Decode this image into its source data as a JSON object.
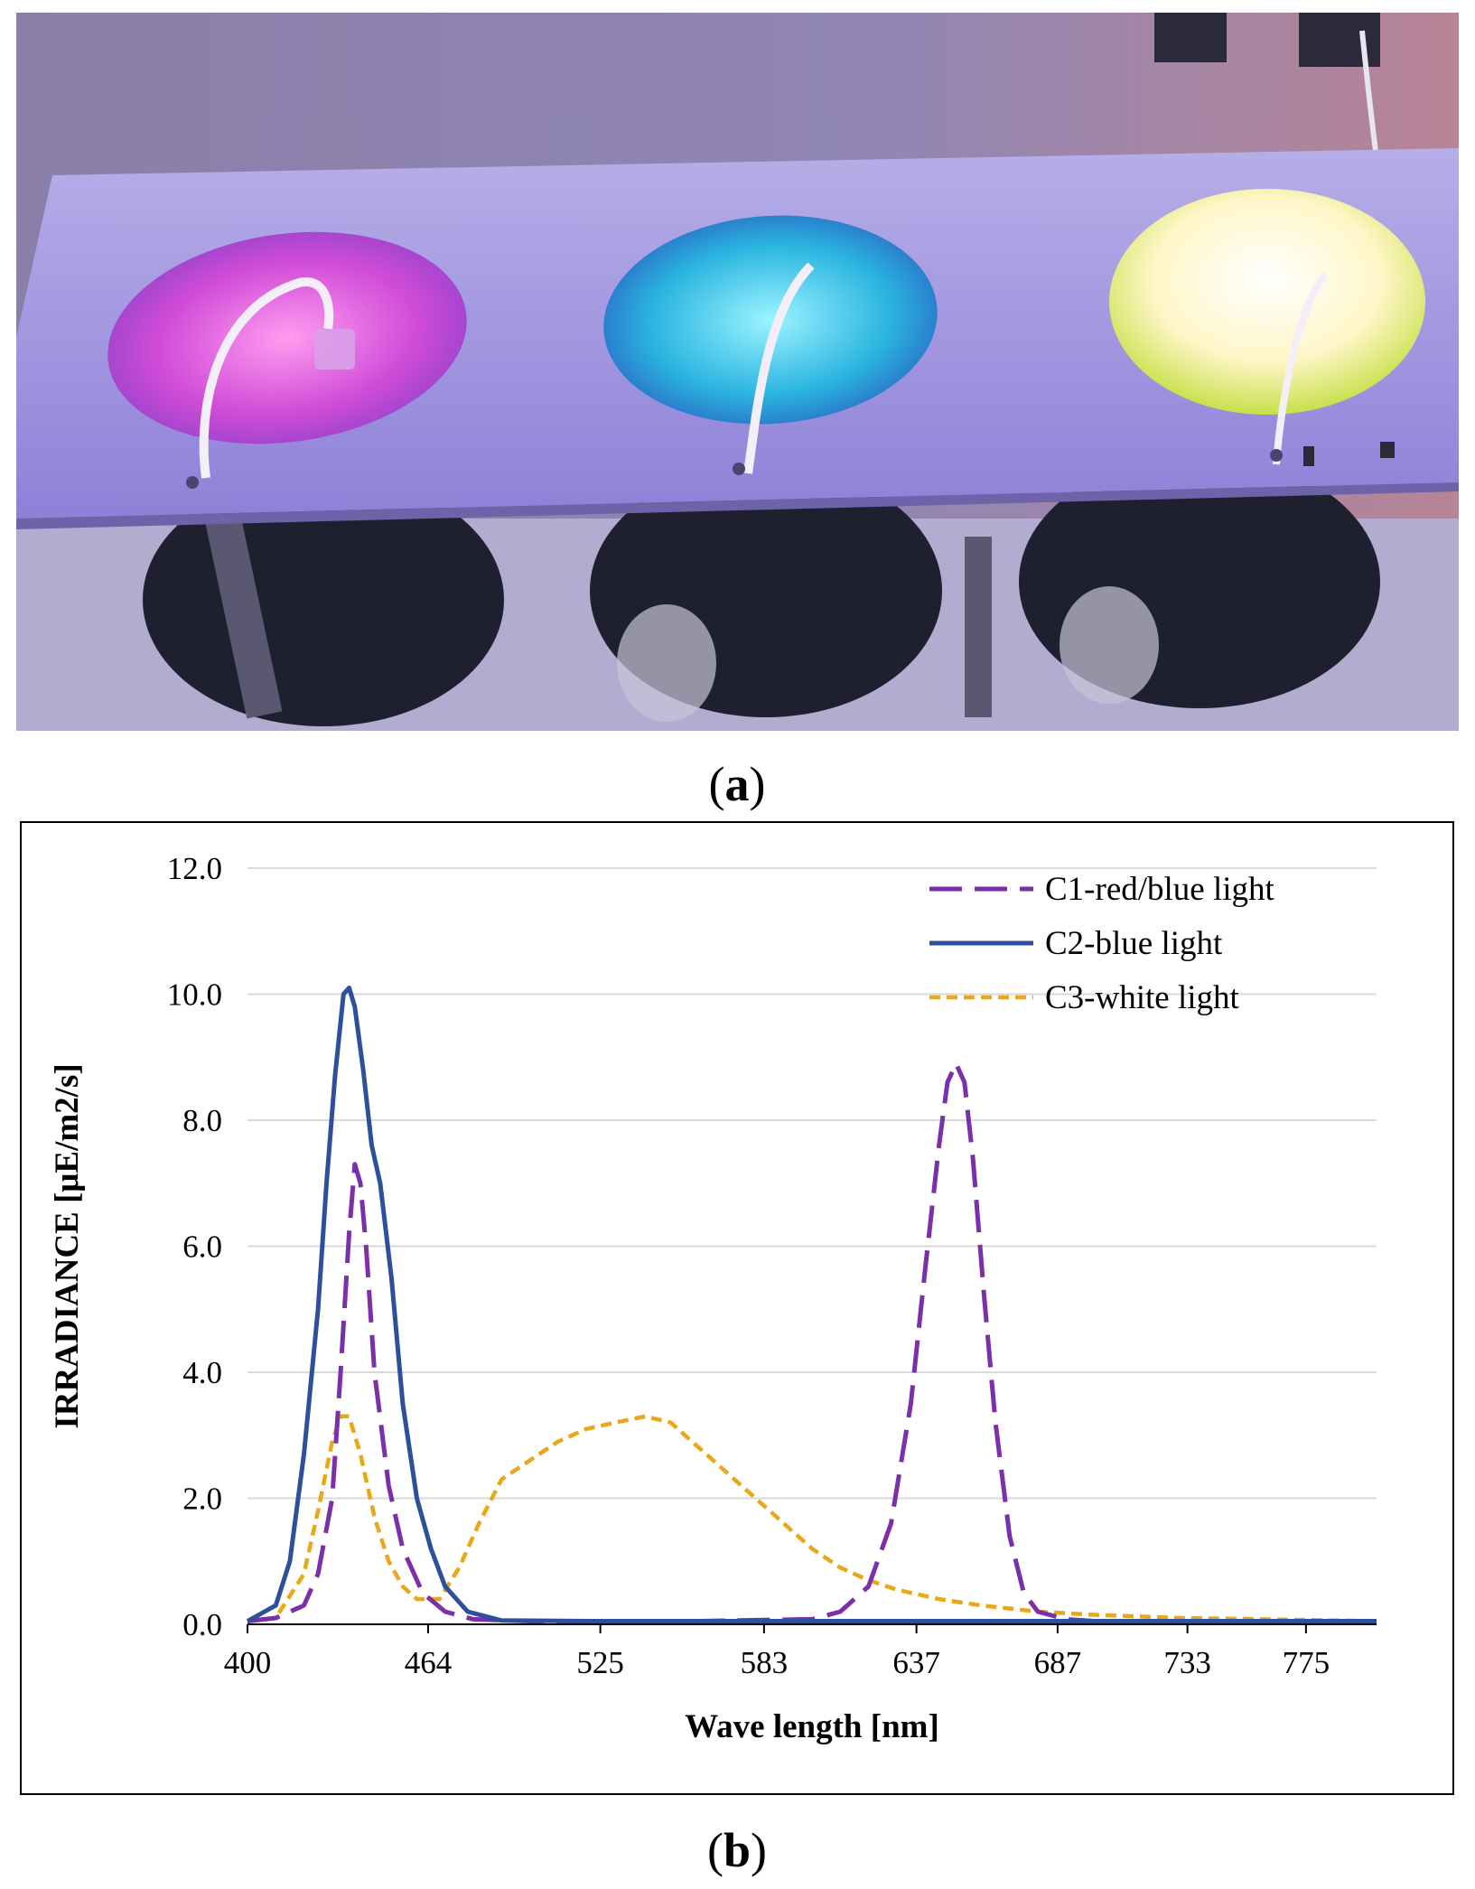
{
  "figure": {
    "label_a": {
      "open": "(",
      "letter": "a",
      "close": ")"
    },
    "label_b": {
      "open": "(",
      "letter": "b",
      "close": ")"
    },
    "photo": {
      "icon": "photo-of-three-illuminated-culture-vessels",
      "lamp_colors": [
        "#e060e8",
        "#2ec8e8",
        "#fff8c8"
      ]
    }
  },
  "chart_data": {
    "type": "line",
    "title": "",
    "xlabel": "Wave length [nm]",
    "ylabel": "IRRADIANCE [μE/m2/s]",
    "xlim": [
      400,
      800
    ],
    "ylim": [
      0,
      12
    ],
    "x_ticks": [
      400,
      464,
      525,
      583,
      637,
      687,
      733,
      775
    ],
    "y_ticks": [
      "0.0",
      "2.0",
      "4.0",
      "6.0",
      "8.0",
      "10.0",
      "12.0"
    ],
    "grid": true,
    "legend_position": "top-right",
    "series": [
      {
        "name": "C1-red/blue light",
        "color": "#7b2fa8",
        "dash": "long-dash",
        "points": [
          [
            400,
            0.05
          ],
          [
            410,
            0.1
          ],
          [
            420,
            0.3
          ],
          [
            425,
            0.8
          ],
          [
            430,
            2.0
          ],
          [
            433,
            4.0
          ],
          [
            436,
            6.2
          ],
          [
            438,
            7.3
          ],
          [
            440,
            7.0
          ],
          [
            442,
            6.0
          ],
          [
            445,
            4.0
          ],
          [
            450,
            2.2
          ],
          [
            455,
            1.2
          ],
          [
            462,
            0.5
          ],
          [
            470,
            0.2
          ],
          [
            480,
            0.08
          ],
          [
            500,
            0.05
          ],
          [
            560,
            0.05
          ],
          [
            600,
            0.08
          ],
          [
            610,
            0.2
          ],
          [
            620,
            0.6
          ],
          [
            628,
            1.6
          ],
          [
            635,
            3.5
          ],
          [
            640,
            5.6
          ],
          [
            645,
            7.6
          ],
          [
            648,
            8.6
          ],
          [
            651,
            8.9
          ],
          [
            654,
            8.6
          ],
          [
            657,
            7.4
          ],
          [
            661,
            5.2
          ],
          [
            665,
            3.2
          ],
          [
            670,
            1.4
          ],
          [
            675,
            0.5
          ],
          [
            680,
            0.2
          ],
          [
            690,
            0.08
          ],
          [
            700,
            0.05
          ],
          [
            800,
            0.05
          ]
        ]
      },
      {
        "name": "C2-blue light",
        "color": "#2e4f9c",
        "dash": "solid",
        "points": [
          [
            400,
            0.05
          ],
          [
            410,
            0.3
          ],
          [
            415,
            1.0
          ],
          [
            420,
            2.7
          ],
          [
            425,
            5.0
          ],
          [
            428,
            7.0
          ],
          [
            431,
            8.7
          ],
          [
            434,
            10.0
          ],
          [
            436,
            10.1
          ],
          [
            438,
            9.8
          ],
          [
            441,
            8.8
          ],
          [
            444,
            7.6
          ],
          [
            447,
            7.0
          ],
          [
            451,
            5.5
          ],
          [
            455,
            3.5
          ],
          [
            460,
            2.0
          ],
          [
            465,
            1.2
          ],
          [
            470,
            0.6
          ],
          [
            478,
            0.2
          ],
          [
            490,
            0.06
          ],
          [
            520,
            0.05
          ],
          [
            800,
            0.05
          ]
        ]
      },
      {
        "name": "C3-white light",
        "color": "#e8a81a",
        "dash": "short-dash",
        "points": [
          [
            400,
            0.05
          ],
          [
            410,
            0.1
          ],
          [
            420,
            0.8
          ],
          [
            425,
            1.8
          ],
          [
            430,
            2.9
          ],
          [
            433,
            3.3
          ],
          [
            436,
            3.3
          ],
          [
            440,
            2.7
          ],
          [
            445,
            1.7
          ],
          [
            450,
            1.0
          ],
          [
            455,
            0.6
          ],
          [
            460,
            0.4
          ],
          [
            468,
            0.4
          ],
          [
            475,
            0.9
          ],
          [
            482,
            1.6
          ],
          [
            490,
            2.3
          ],
          [
            500,
            2.6
          ],
          [
            510,
            2.9
          ],
          [
            520,
            3.1
          ],
          [
            530,
            3.2
          ],
          [
            541,
            3.3
          ],
          [
            550,
            3.2
          ],
          [
            560,
            2.8
          ],
          [
            570,
            2.4
          ],
          [
            580,
            2.0
          ],
          [
            590,
            1.6
          ],
          [
            600,
            1.2
          ],
          [
            610,
            0.9
          ],
          [
            620,
            0.7
          ],
          [
            630,
            0.55
          ],
          [
            645,
            0.4
          ],
          [
            660,
            0.3
          ],
          [
            680,
            0.2
          ],
          [
            700,
            0.15
          ],
          [
            730,
            0.1
          ],
          [
            760,
            0.08
          ],
          [
            800,
            0.05
          ]
        ]
      }
    ]
  }
}
